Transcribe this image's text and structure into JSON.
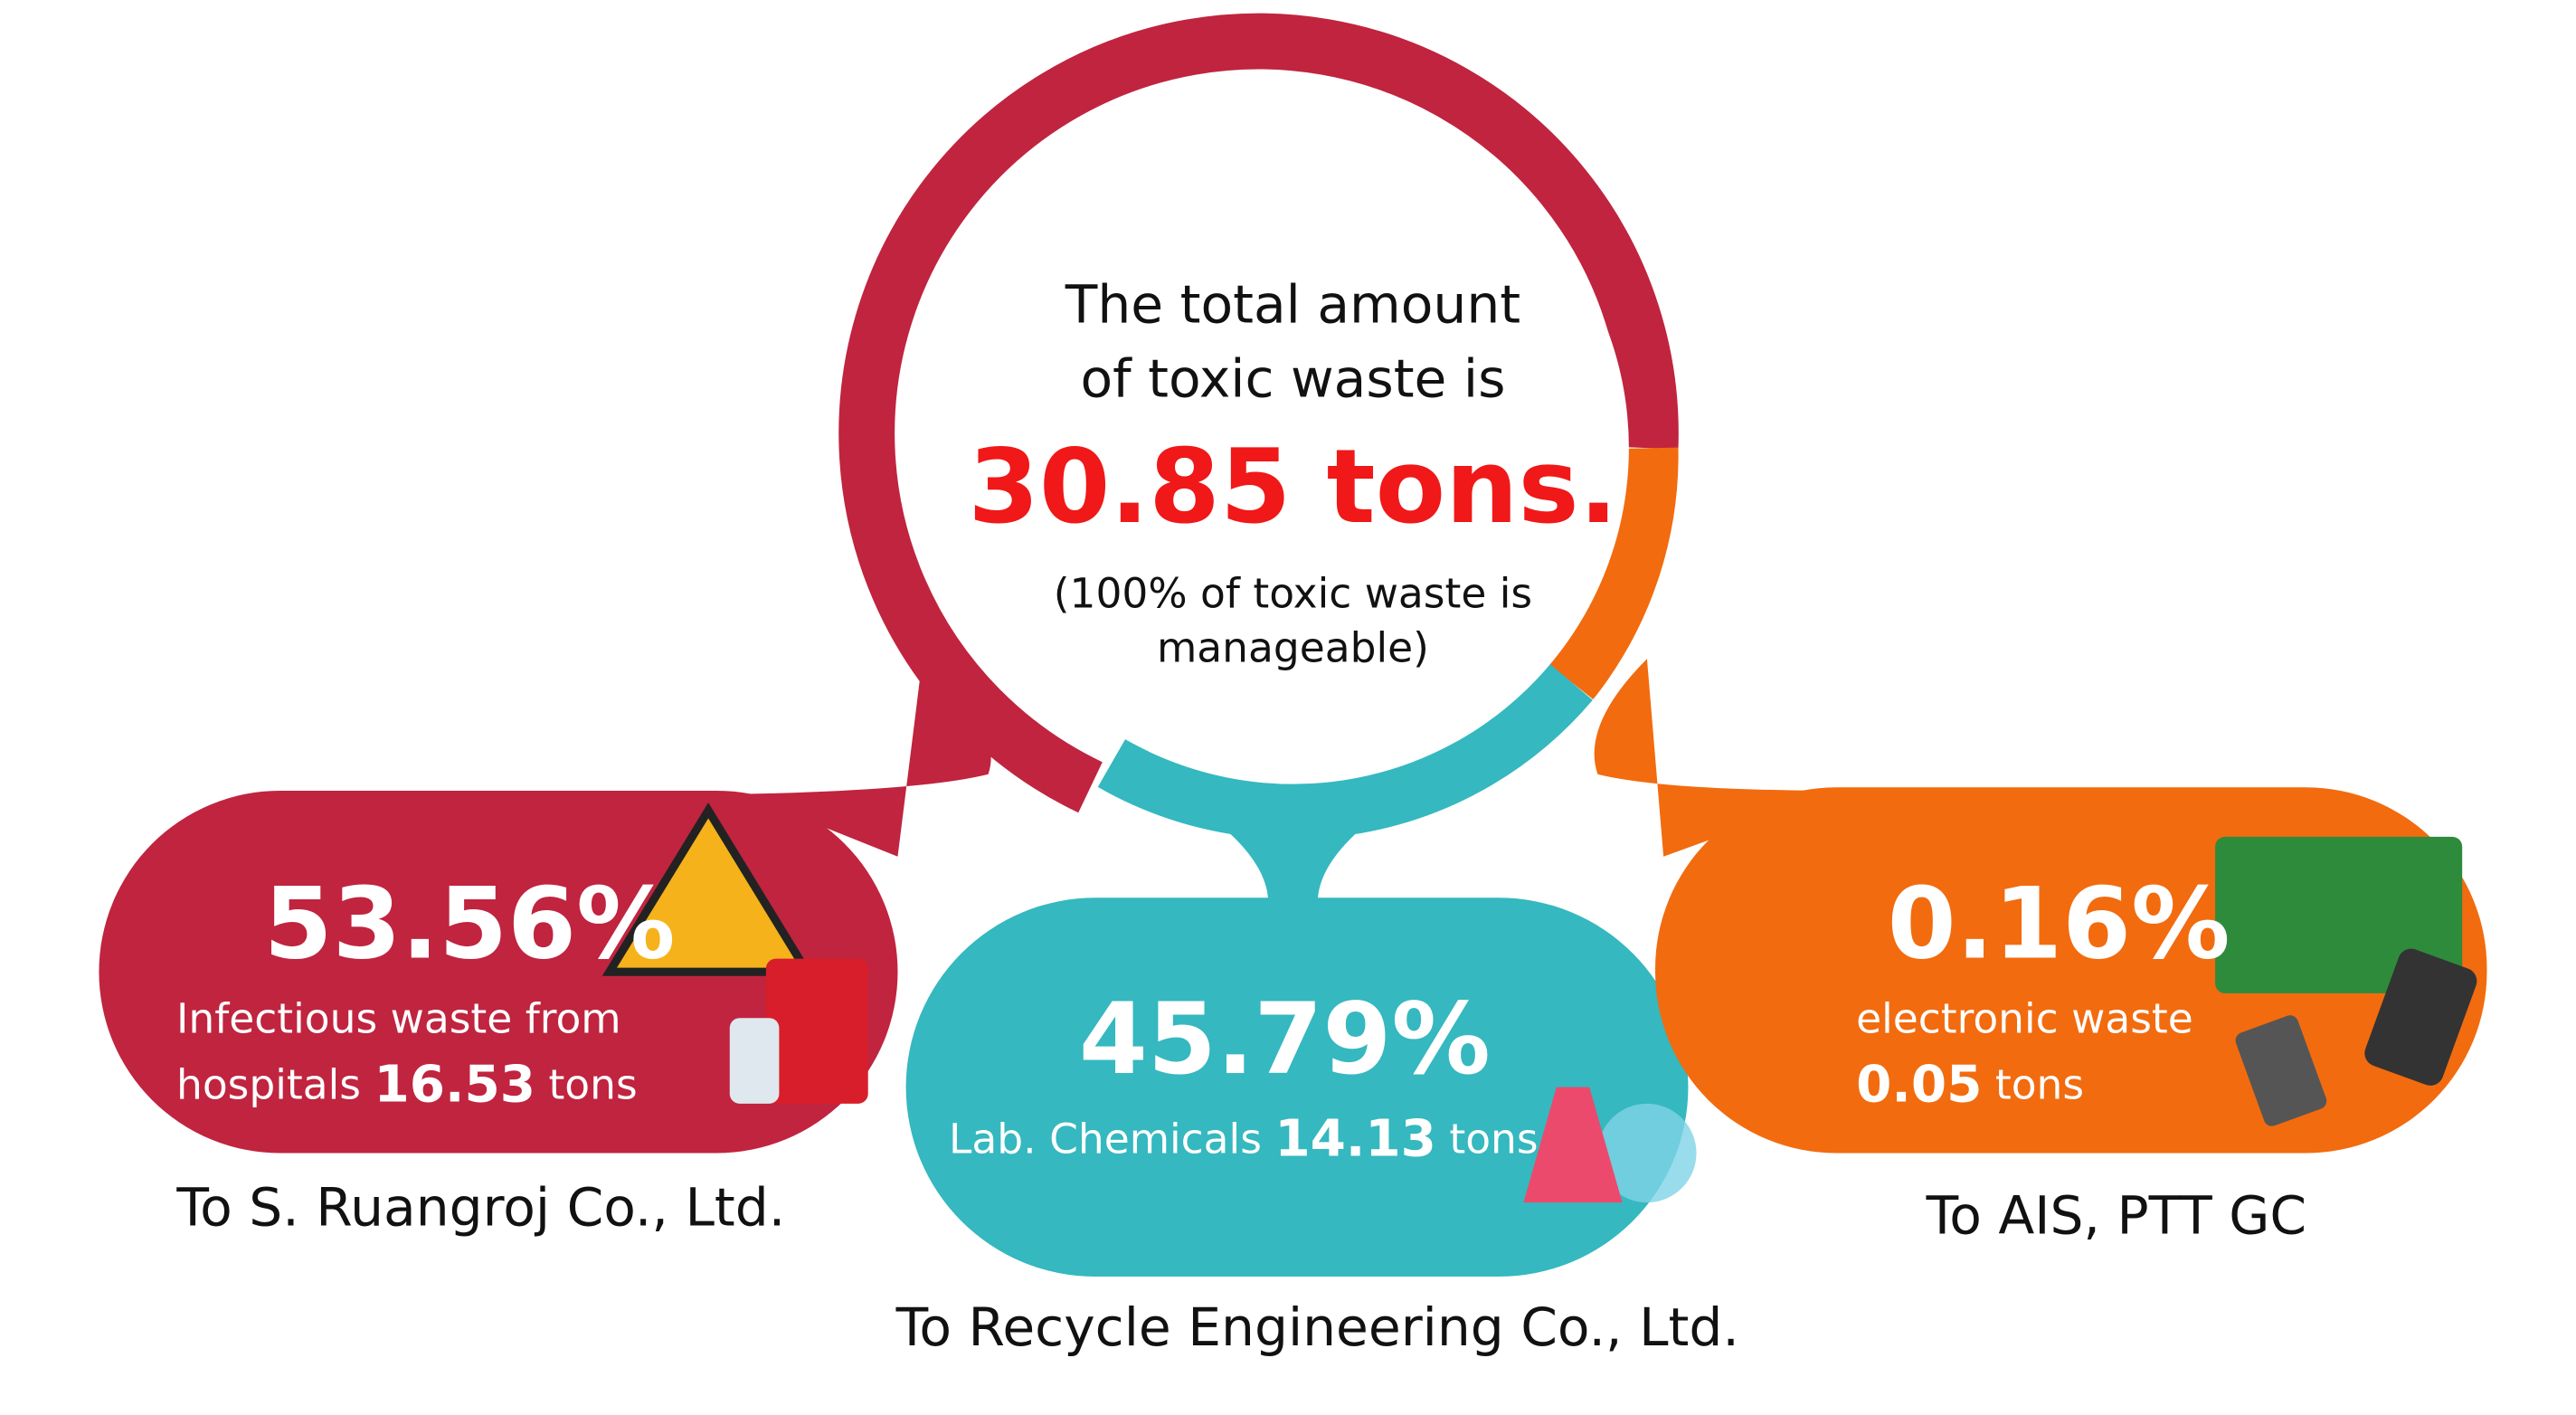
{
  "center": {
    "line1": "The total amount",
    "line2": "of toxic waste is",
    "total": "30.85 tons.",
    "note_line1": "(100% of toxic waste is",
    "note_line2": "manageable)"
  },
  "segments": [
    {
      "percent": "53.56%",
      "desc_line1": "Infectious waste from",
      "desc_line2": "hospitals",
      "amount": "16.53",
      "unit": "tons",
      "destination": "To S. Ruangroj Co., Ltd."
    },
    {
      "percent": "45.79%",
      "desc_line1": "Lab. Chemicals",
      "amount": "14.13",
      "unit": "tons",
      "destination": "To Recycle Engineering Co., Ltd."
    },
    {
      "percent": "0.16%",
      "desc_line1": "electronic waste",
      "amount": "0.05",
      "unit": "tons",
      "destination": "To AIS, PTT GC"
    }
  ]
}
